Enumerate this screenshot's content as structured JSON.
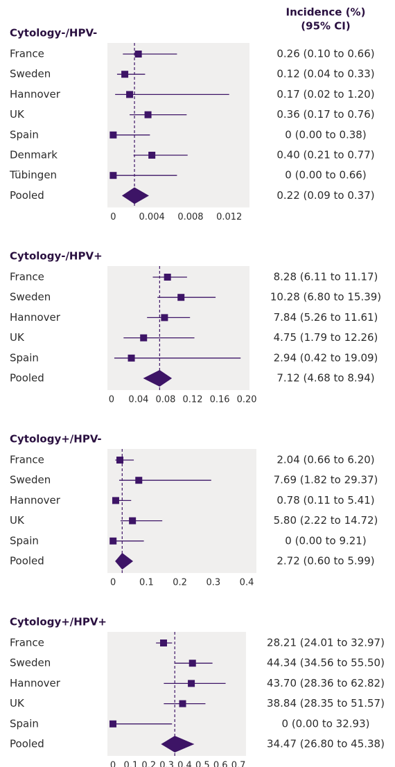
{
  "header": [
    "Incidence (%)",
    "(95% CI)"
  ],
  "chart_data": [
    {
      "type": "forest",
      "title": "Cytology-/HPV-",
      "color": "#3d1466",
      "categories": [
        "France",
        "Sweden",
        "Hannover",
        "UK",
        "Spain",
        "Denmark",
        "Tübingen",
        "Pooled"
      ],
      "values": [
        0.0026,
        0.0012,
        0.0017,
        0.0036,
        0,
        0.004,
        0,
        0.0022
      ],
      "lower": [
        0.001,
        0.0004,
        0.0002,
        0.0017,
        0,
        0.0021,
        0,
        0.0009
      ],
      "upper": [
        0.0066,
        0.0033,
        0.012,
        0.0076,
        0.0038,
        0.0077,
        0.0066,
        0.0037
      ],
      "value_labels": [
        "0.26 (0.10 to 0.66)",
        "0.12 (0.04 to 0.33)",
        "0.17 (0.02 to 1.20)",
        "0.36 (0.17 to 0.76)",
        "0 (0.00 to 0.38)",
        "0.40 (0.21 to 0.77)",
        "0 (0.00 to 0.66)",
        "0.22 (0.09 to 0.37)"
      ],
      "xlim": [
        -0.0006,
        0.0141
      ],
      "xticks": [
        0,
        0.004,
        0.008,
        0.012
      ]
    },
    {
      "type": "forest",
      "title": "Cytology-/HPV+",
      "color": "#3d1466",
      "categories": [
        "France",
        "Sweden",
        "Hannover",
        "UK",
        "Spain",
        "Pooled"
      ],
      "values": [
        0.0828,
        0.1028,
        0.0784,
        0.0475,
        0.0294,
        0.0712
      ],
      "lower": [
        0.0611,
        0.068,
        0.0526,
        0.0179,
        0.0042,
        0.0468
      ],
      "upper": [
        0.1117,
        0.1539,
        0.1161,
        0.1226,
        0.1909,
        0.0894
      ],
      "value_labels": [
        "8.28 (6.11 to 11.17)",
        "10.28 (6.80 to 15.39)",
        "7.84 (5.26 to 11.61)",
        "4.75 (1.79 to 12.26)",
        "2.94 (0.42 to 19.09)",
        "7.12 (4.68 to 8.94)"
      ],
      "xlim": [
        -0.006,
        0.204
      ],
      "xticks": [
        0,
        0.04,
        0.08,
        0.12,
        0.16,
        {
          "value": 0.2,
          "label": "0.20"
        }
      ]
    },
    {
      "type": "forest",
      "title": "Cytology+/HPV-",
      "color": "#3d1466",
      "categories": [
        "France",
        "Sweden",
        "Hannover",
        "UK",
        "Spain",
        "Pooled"
      ],
      "values": [
        0.0204,
        0.0769,
        0.0078,
        0.058,
        0,
        0.0272
      ],
      "lower": [
        0.0066,
        0.0182,
        0.0011,
        0.0222,
        0,
        0.006
      ],
      "upper": [
        0.062,
        0.2937,
        0.0541,
        0.1472,
        0.0921,
        0.0599
      ],
      "value_labels": [
        "2.04 (0.66 to 6.20)",
        "7.69 (1.82 to 29.37)",
        "0.78 (0.11 to 5.41)",
        "5.80 (2.22 to 14.72)",
        "0 (0.00 to 9.21)",
        "2.72 (0.60 to 5.99)"
      ],
      "xlim": [
        -0.017,
        0.429
      ],
      "xticks": [
        0,
        0.1,
        0.2,
        0.3,
        0.4
      ]
    },
    {
      "type": "forest",
      "title": "Cytology+/HPV+",
      "color": "#3d1466",
      "categories": [
        "France",
        "Sweden",
        "Hannover",
        "UK",
        "Spain",
        "Pooled"
      ],
      "values": [
        0.2821,
        0.4434,
        0.437,
        0.3884,
        0,
        0.3447
      ],
      "lower": [
        0.2401,
        0.3456,
        0.2836,
        0.2835,
        0,
        0.268
      ],
      "upper": [
        0.3297,
        0.555,
        0.6282,
        0.5157,
        0.3293,
        0.4538
      ],
      "value_labels": [
        "28.21 (24.01 to 32.97)",
        "44.34 (34.56 to 55.50)",
        "43.70 (28.36 to 62.82)",
        "38.84 (28.35 to 51.57)",
        "0 (0.00 to 32.93)",
        "34.47 (26.80 to 45.38)"
      ],
      "xlim": [
        -0.031,
        0.742
      ],
      "xticks": [
        0,
        0.1,
        0.2,
        0.3,
        0.4,
        0.5,
        0.6,
        0.7
      ]
    }
  ]
}
